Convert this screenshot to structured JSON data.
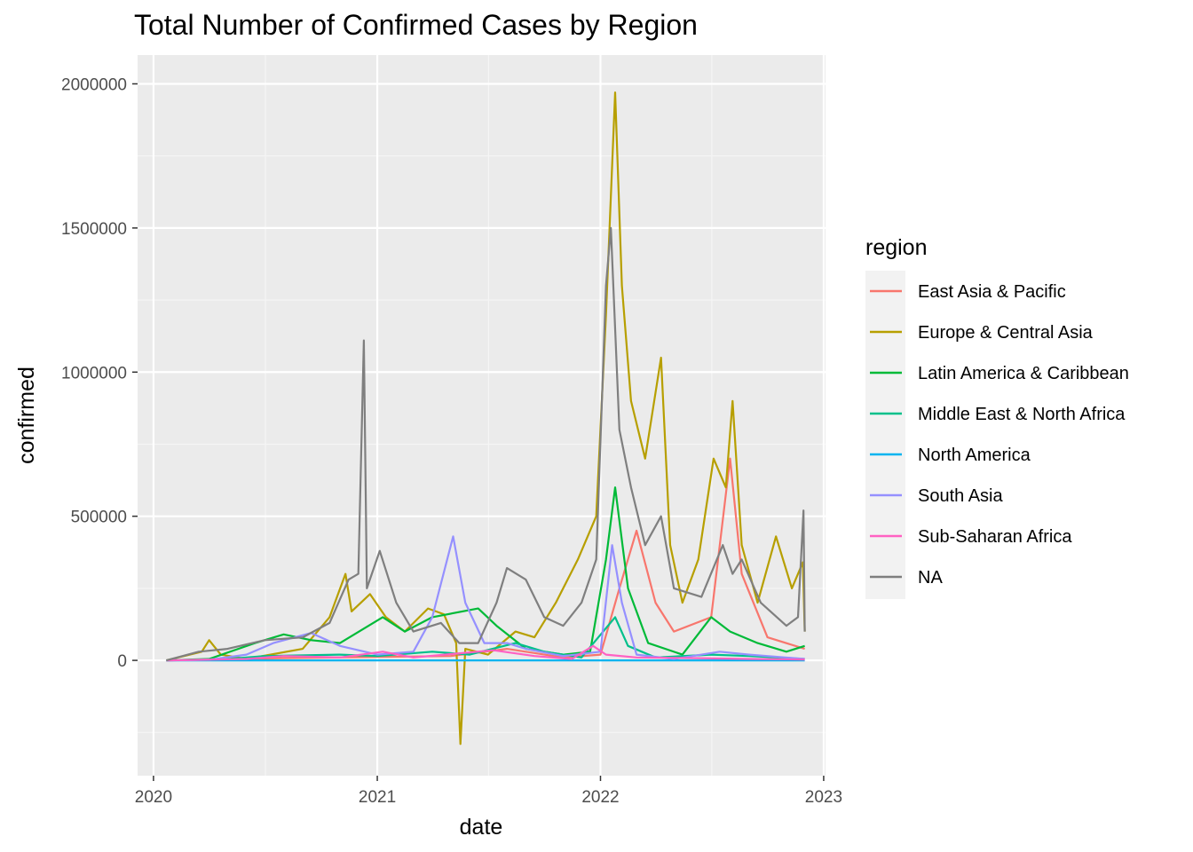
{
  "chart_data": {
    "type": "line",
    "title": "Total Number of Confirmed Cases by Region",
    "xlabel": "date",
    "ylabel": "confirmed",
    "x_ticks": [
      "2020",
      "2021",
      "2022",
      "2023"
    ],
    "y_ticks": [
      "0",
      "500000",
      "1000000",
      "1500000",
      "2000000"
    ],
    "xlim": [
      "2019-12-06",
      "2023-01-04"
    ],
    "ylim": [
      -400000,
      2100000
    ],
    "grid": true,
    "legend": {
      "title": "region",
      "position": "right"
    },
    "series": [
      {
        "name": "East Asia & Pacific",
        "color": "#F8766D",
        "points": [
          [
            "2020-01-22",
            0
          ],
          [
            "2020-04-01",
            3000
          ],
          [
            "2020-08-01",
            8000
          ],
          [
            "2021-01-01",
            12000
          ],
          [
            "2021-05-01",
            15000
          ],
          [
            "2021-08-01",
            40000
          ],
          [
            "2021-11-01",
            10000
          ],
          [
            "2022-01-01",
            20000
          ],
          [
            "2022-02-01",
            250000
          ],
          [
            "2022-03-01",
            450000
          ],
          [
            "2022-04-01",
            200000
          ],
          [
            "2022-05-01",
            100000
          ],
          [
            "2022-07-01",
            150000
          ],
          [
            "2022-08-01",
            700000
          ],
          [
            "2022-08-20",
            300000
          ],
          [
            "2022-10-01",
            80000
          ],
          [
            "2022-12-01",
            40000
          ]
        ]
      },
      {
        "name": "Europe & Central Asia",
        "color": "#B79F00",
        "points": [
          [
            "2020-01-22",
            0
          ],
          [
            "2020-03-20",
            30000
          ],
          [
            "2020-04-01",
            70000
          ],
          [
            "2020-04-20",
            20000
          ],
          [
            "2020-06-01",
            5000
          ],
          [
            "2020-09-01",
            40000
          ],
          [
            "2020-10-15",
            150000
          ],
          [
            "2020-11-10",
            300000
          ],
          [
            "2020-11-20",
            170000
          ],
          [
            "2020-12-20",
            230000
          ],
          [
            "2021-01-15",
            150000
          ],
          [
            "2021-02-15",
            100000
          ],
          [
            "2021-03-25",
            180000
          ],
          [
            "2021-04-20",
            160000
          ],
          [
            "2021-05-10",
            60000
          ],
          [
            "2021-05-17",
            -290000
          ],
          [
            "2021-05-25",
            40000
          ],
          [
            "2021-07-01",
            20000
          ],
          [
            "2021-08-15",
            100000
          ],
          [
            "2021-09-15",
            80000
          ],
          [
            "2021-10-20",
            200000
          ],
          [
            "2021-11-25",
            350000
          ],
          [
            "2021-12-25",
            500000
          ],
          [
            "2022-01-10",
            1200000
          ],
          [
            "2022-01-25",
            1970000
          ],
          [
            "2022-02-05",
            1300000
          ],
          [
            "2022-02-20",
            900000
          ],
          [
            "2022-03-15",
            700000
          ],
          [
            "2022-04-10",
            1050000
          ],
          [
            "2022-04-25",
            400000
          ],
          [
            "2022-05-15",
            200000
          ],
          [
            "2022-06-10",
            350000
          ],
          [
            "2022-07-05",
            700000
          ],
          [
            "2022-07-25",
            600000
          ],
          [
            "2022-08-05",
            900000
          ],
          [
            "2022-08-20",
            400000
          ],
          [
            "2022-09-15",
            200000
          ],
          [
            "2022-10-15",
            430000
          ],
          [
            "2022-11-10",
            250000
          ],
          [
            "2022-11-28",
            340000
          ],
          [
            "2022-12-01",
            100000
          ]
        ]
      },
      {
        "name": "Latin America & Caribbean",
        "color": "#00BA38",
        "points": [
          [
            "2020-01-22",
            0
          ],
          [
            "2020-04-01",
            5000
          ],
          [
            "2020-06-15",
            60000
          ],
          [
            "2020-08-01",
            90000
          ],
          [
            "2020-09-15",
            70000
          ],
          [
            "2020-11-01",
            60000
          ],
          [
            "2021-01-10",
            150000
          ],
          [
            "2021-02-15",
            100000
          ],
          [
            "2021-04-01",
            150000
          ],
          [
            "2021-06-15",
            180000
          ],
          [
            "2021-07-15",
            120000
          ],
          [
            "2021-09-01",
            40000
          ],
          [
            "2021-11-01",
            20000
          ],
          [
            "2021-12-15",
            30000
          ],
          [
            "2022-01-10",
            350000
          ],
          [
            "2022-01-25",
            600000
          ],
          [
            "2022-02-15",
            250000
          ],
          [
            "2022-03-20",
            60000
          ],
          [
            "2022-05-15",
            20000
          ],
          [
            "2022-07-01",
            150000
          ],
          [
            "2022-08-01",
            100000
          ],
          [
            "2022-09-15",
            60000
          ],
          [
            "2022-11-01",
            30000
          ],
          [
            "2022-12-01",
            50000
          ]
        ]
      },
      {
        "name": "Middle East & North Africa",
        "color": "#00C08B",
        "points": [
          [
            "2020-01-22",
            0
          ],
          [
            "2020-05-01",
            5000
          ],
          [
            "2020-07-01",
            15000
          ],
          [
            "2020-11-01",
            20000
          ],
          [
            "2021-01-01",
            15000
          ],
          [
            "2021-04-01",
            30000
          ],
          [
            "2021-06-01",
            20000
          ],
          [
            "2021-08-15",
            60000
          ],
          [
            "2021-10-01",
            30000
          ],
          [
            "2021-12-01",
            10000
          ],
          [
            "2022-01-25",
            150000
          ],
          [
            "2022-02-15",
            50000
          ],
          [
            "2022-04-01",
            10000
          ],
          [
            "2022-07-01",
            20000
          ],
          [
            "2022-09-01",
            15000
          ],
          [
            "2022-12-01",
            5000
          ]
        ]
      },
      {
        "name": "North America",
        "color": "#00B4EF",
        "points": [
          [
            "2020-01-22",
            0
          ],
          [
            "2021-06-01",
            0
          ],
          [
            "2022-12-01",
            0
          ]
        ]
      },
      {
        "name": "South Asia",
        "color": "#9590FF",
        "points": [
          [
            "2020-01-22",
            0
          ],
          [
            "2020-04-01",
            2000
          ],
          [
            "2020-06-01",
            20000
          ],
          [
            "2020-07-15",
            60000
          ],
          [
            "2020-09-15",
            95000
          ],
          [
            "2020-11-01",
            50000
          ],
          [
            "2021-01-01",
            20000
          ],
          [
            "2021-03-01",
            30000
          ],
          [
            "2021-04-01",
            150000
          ],
          [
            "2021-05-05",
            430000
          ],
          [
            "2021-05-25",
            200000
          ],
          [
            "2021-06-25",
            60000
          ],
          [
            "2021-08-01",
            60000
          ],
          [
            "2021-09-01",
            40000
          ],
          [
            "2021-11-01",
            15000
          ],
          [
            "2022-01-01",
            30000
          ],
          [
            "2022-01-20",
            400000
          ],
          [
            "2022-02-05",
            200000
          ],
          [
            "2022-03-01",
            20000
          ],
          [
            "2022-05-01",
            5000
          ],
          [
            "2022-07-15",
            30000
          ],
          [
            "2022-09-01",
            20000
          ],
          [
            "2022-12-01",
            5000
          ]
        ]
      },
      {
        "name": "Sub-Saharan Africa",
        "color": "#FF61C3",
        "points": [
          [
            "2020-01-22",
            0
          ],
          [
            "2020-06-01",
            5000
          ],
          [
            "2020-08-01",
            15000
          ],
          [
            "2020-11-01",
            10000
          ],
          [
            "2021-01-10",
            30000
          ],
          [
            "2021-03-01",
            10000
          ],
          [
            "2021-07-10",
            35000
          ],
          [
            "2021-09-15",
            15000
          ],
          [
            "2021-11-15",
            5000
          ],
          [
            "2021-12-20",
            50000
          ],
          [
            "2022-01-10",
            20000
          ],
          [
            "2022-03-01",
            10000
          ],
          [
            "2022-06-01",
            8000
          ],
          [
            "2022-09-01",
            5000
          ],
          [
            "2022-12-01",
            3000
          ]
        ]
      },
      {
        "name": "NA",
        "color": "#7F7F7F",
        "points": [
          [
            "2020-01-22",
            0
          ],
          [
            "2020-03-15",
            30000
          ],
          [
            "2020-05-01",
            40000
          ],
          [
            "2020-07-01",
            70000
          ],
          [
            "2020-09-01",
            80000
          ],
          [
            "2020-10-15",
            130000
          ],
          [
            "2020-11-15",
            280000
          ],
          [
            "2020-12-01",
            300000
          ],
          [
            "2020-12-10",
            1110000
          ],
          [
            "2020-12-15",
            250000
          ],
          [
            "2021-01-05",
            380000
          ],
          [
            "2021-02-01",
            200000
          ],
          [
            "2021-03-01",
            100000
          ],
          [
            "2021-04-15",
            130000
          ],
          [
            "2021-05-15",
            60000
          ],
          [
            "2021-06-15",
            60000
          ],
          [
            "2021-07-15",
            200000
          ],
          [
            "2021-08-01",
            320000
          ],
          [
            "2021-09-01",
            280000
          ],
          [
            "2021-10-01",
            150000
          ],
          [
            "2021-11-01",
            120000
          ],
          [
            "2021-12-01",
            200000
          ],
          [
            "2021-12-25",
            350000
          ],
          [
            "2022-01-10",
            1300000
          ],
          [
            "2022-01-18",
            1500000
          ],
          [
            "2022-02-01",
            800000
          ],
          [
            "2022-02-20",
            600000
          ],
          [
            "2022-03-15",
            400000
          ],
          [
            "2022-04-10",
            500000
          ],
          [
            "2022-05-01",
            250000
          ],
          [
            "2022-06-15",
            220000
          ],
          [
            "2022-07-20",
            400000
          ],
          [
            "2022-08-05",
            300000
          ],
          [
            "2022-08-20",
            350000
          ],
          [
            "2022-09-20",
            200000
          ],
          [
            "2022-11-01",
            120000
          ],
          [
            "2022-11-20",
            150000
          ],
          [
            "2022-11-29",
            520000
          ],
          [
            "2022-12-01",
            100000
          ]
        ]
      }
    ]
  }
}
